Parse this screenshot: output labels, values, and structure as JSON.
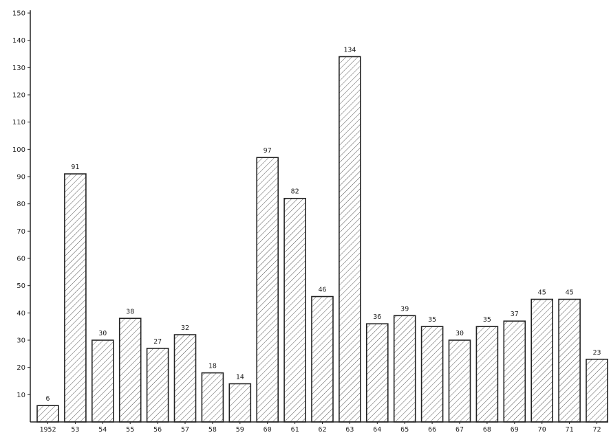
{
  "chart_data": {
    "type": "bar",
    "categories": [
      "1952",
      "53",
      "54",
      "55",
      "56",
      "57",
      "58",
      "59",
      "60",
      "61",
      "62",
      "63",
      "64",
      "65",
      "66",
      "67",
      "68",
      "69",
      "70",
      "71",
      "72"
    ],
    "values": [
      6,
      91,
      30,
      38,
      27,
      32,
      18,
      14,
      97,
      82,
      46,
      134,
      36,
      39,
      35,
      30,
      35,
      37,
      45,
      45,
      23
    ],
    "data_labels": [
      "6",
      "91",
      "30",
      "38",
      "27",
      "32",
      "18",
      "14",
      "97",
      "82",
      "46",
      "134",
      "36",
      "39",
      "35",
      "30",
      "35",
      "37",
      "45",
      "45",
      "23"
    ],
    "yticks": [
      10,
      20,
      30,
      40,
      50,
      60,
      70,
      80,
      90,
      100,
      110,
      120,
      130,
      140,
      150
    ],
    "ylim": [
      0,
      150
    ],
    "title": "",
    "xlabel": "",
    "ylabel": "",
    "grid": false,
    "bar_fill": "hatched",
    "colors": {
      "stroke": "#222222",
      "hatch": "#555555",
      "background": "#ffffff"
    }
  }
}
